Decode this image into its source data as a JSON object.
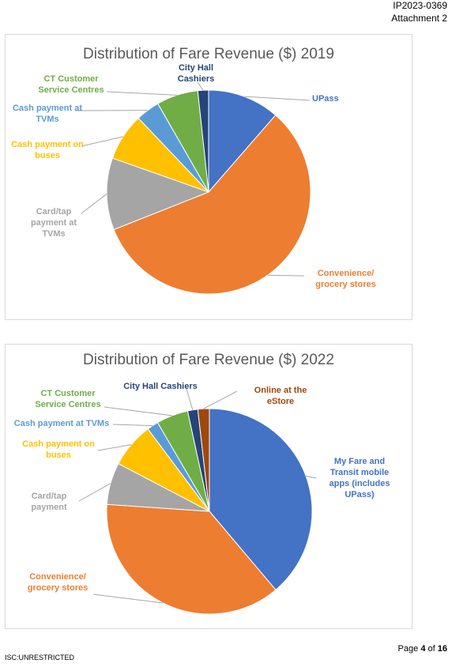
{
  "header": {
    "doc_id": "IP2023-0369",
    "attachment": "Attachment 2"
  },
  "chart_data": [
    {
      "type": "pie",
      "title": "Distribution of Fare Revenue ($) 2019",
      "categories": [
        "UPass",
        "Convenience/ grocery stores",
        "Card/tap payment at TVMs",
        "Cash payment on buses",
        "Cash payment at TVMs",
        "CT Customer Service Centres",
        "City Hall Cashiers"
      ],
      "values": [
        11.4,
        57.6,
        11.4,
        7.5,
        3.8,
        6.6,
        1.7
      ],
      "colors": [
        "#4472c4",
        "#ed7d31",
        "#a5a5a5",
        "#ffc000",
        "#5b9bd5",
        "#70ad47",
        "#264478"
      ]
    },
    {
      "type": "pie",
      "title": "Distribution of Fare Revenue ($) 2022",
      "categories": [
        "My Fare and Transit mobile apps (includes UPass)",
        "Convenience/ grocery stores",
        "Card/tap payment",
        "Cash payment on buses",
        "Cash payment at TVMs",
        "CT Customer Service Centres",
        "City Hall Cashiers",
        "Online at the eStore"
      ],
      "values": [
        38.8,
        37.2,
        6.6,
        7.1,
        1.8,
        5.0,
        1.6,
        1.8
      ],
      "colors": [
        "#4472c4",
        "#ed7d31",
        "#a5a5a5",
        "#ffc000",
        "#5b9bd5",
        "#70ad47",
        "#264478",
        "#9e480e"
      ]
    }
  ],
  "footer": {
    "page_label": "Page",
    "page_number": 4,
    "page_of": "of",
    "page_total": 16,
    "classification": "ISC:UNRESTRICTED"
  }
}
